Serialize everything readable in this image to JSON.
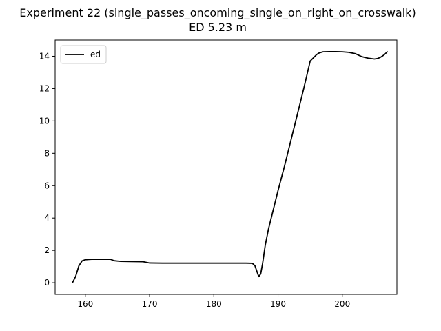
{
  "chart_data": {
    "type": "line",
    "title": "Experiment 22 (single_passes_oncoming_single_on_right_on_crosswalk)",
    "subtitle": "ED 5.23 m",
    "xlabel": "",
    "ylabel": "",
    "xlim": [
      155.3,
      208.5
    ],
    "ylim": [
      -0.72,
      15.0
    ],
    "xticks": [
      160,
      170,
      180,
      190,
      200
    ],
    "yticks": [
      0,
      2,
      4,
      6,
      8,
      10,
      12,
      14
    ],
    "grid": false,
    "legend": {
      "placement": "top-left",
      "entries": [
        "ed"
      ]
    },
    "series": [
      {
        "name": "ed",
        "color": "#000000",
        "x": [
          158.0,
          158.5,
          159.0,
          159.5,
          160.0,
          161.0,
          162.0,
          163.0,
          163.9,
          164.5,
          165.5,
          167.0,
          169.0,
          170.0,
          172.0,
          175.0,
          180.0,
          185.0,
          186.0,
          186.4,
          186.8,
          187.0,
          187.3,
          187.6,
          188.0,
          188.5,
          189.0,
          190.0,
          191.0,
          192.0,
          193.0,
          194.0,
          195.0,
          196.0,
          196.4,
          197.0,
          198.0,
          199.0,
          200.0,
          201.0,
          202.0,
          203.0,
          204.0,
          205.0,
          205.5,
          206.0,
          206.5,
          207.0
        ],
        "y": [
          0.0,
          0.4,
          1.05,
          1.35,
          1.42,
          1.45,
          1.45,
          1.45,
          1.45,
          1.36,
          1.32,
          1.31,
          1.3,
          1.22,
          1.21,
          1.21,
          1.21,
          1.21,
          1.2,
          1.05,
          0.6,
          0.38,
          0.55,
          1.2,
          2.3,
          3.3,
          4.1,
          5.7,
          7.2,
          8.8,
          10.4,
          12.0,
          13.7,
          14.1,
          14.2,
          14.27,
          14.28,
          14.28,
          14.27,
          14.24,
          14.16,
          13.98,
          13.88,
          13.83,
          13.86,
          13.95,
          14.08,
          14.27
        ]
      }
    ]
  }
}
